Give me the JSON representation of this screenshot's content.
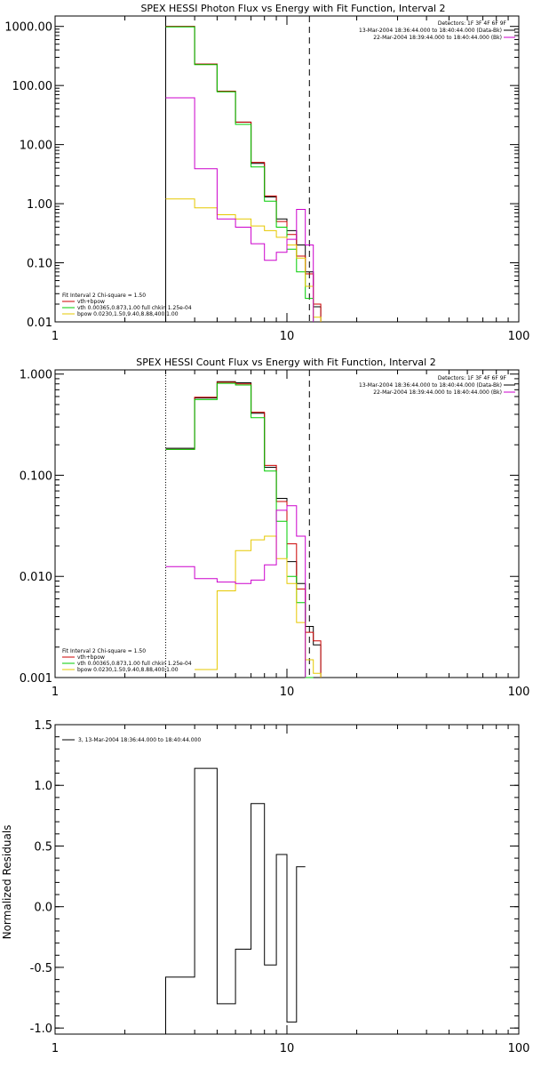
{
  "colors": {
    "total": "#000000",
    "fit": "#cc0000",
    "vth": "#00cc00",
    "bpow": "#e6c800",
    "bk": "#cc00cc",
    "background": "#ffffff"
  },
  "chart_data": [
    {
      "id": "photon",
      "type": "line",
      "title": "SPEX HESSI Photon Flux vs Energy with Fit Function, Interval 2",
      "xlabel": "",
      "ylabel": "",
      "xscale": "log",
      "yscale": "log",
      "xlim": [
        1,
        100
      ],
      "ylim": [
        0.01,
        1500
      ],
      "xticks": [
        1,
        10,
        100
      ],
      "xtick_labels": [
        "1",
        "10",
        "100"
      ],
      "yticks": [
        0.01,
        0.1,
        1,
        10,
        100,
        1000
      ],
      "ytick_labels": [
        "0.01",
        "0.10",
        "1.00",
        "10.00",
        "100.00",
        "1000.00"
      ],
      "vlines": [
        {
          "x": 3.0,
          "style": "solid"
        },
        {
          "x": 12.5,
          "style": "dashed"
        }
      ],
      "legend_right": {
        "header": "Detectors: 1F 3F 4F 6F 9F",
        "entries": [
          {
            "label": "13-Mar-2004 18:36:44.000 to 18:40:44.000 (Data-Bk)",
            "color": "#000000"
          },
          {
            "label": "22-Mar-2004 18:39:44.000 to 18:40:44.000 (Bk)",
            "color": "#cc00cc"
          }
        ]
      },
      "legend_left": {
        "header": "Fit Interval 2   Chi-square = 1.50",
        "entries": [
          {
            "label": "vth+bpow",
            "color": "#cc0000"
          },
          {
            "label": "vth 0.00365,0.873,1.00  full chkin 1.25e-04",
            "color": "#00cc00"
          },
          {
            "label": "bpow 0.0230,1.50,9.40,8.88,400,1.00",
            "color": "#e6c800"
          }
        ]
      },
      "bin_edges": [
        3.0,
        4.0,
        5.0,
        6.0,
        7.0,
        8.0,
        9.0,
        10.0,
        11.0,
        12.0,
        13.0,
        14.0
      ],
      "series": [
        {
          "key": "total",
          "color": "#000000",
          "values": [
            1000,
            230,
            80,
            24,
            4.8,
            1.3,
            0.55,
            0.35,
            0.2,
            0.07,
            0.018
          ]
        },
        {
          "key": "fit",
          "color": "#cc0000",
          "values": [
            1000,
            230,
            80,
            24,
            5.0,
            1.35,
            0.5,
            0.3,
            0.13,
            0.065,
            0.02
          ]
        },
        {
          "key": "vth",
          "color": "#00cc00",
          "values": [
            980,
            225,
            78,
            22,
            4.2,
            1.1,
            0.4,
            0.17,
            0.07,
            0.025
          ]
        },
        {
          "key": "bpow",
          "color": "#e6c800",
          "values": [
            1.2,
            0.85,
            0.65,
            0.55,
            0.42,
            0.35,
            0.27,
            0.2,
            0.12,
            0.04,
            0.012
          ]
        },
        {
          "key": "bk",
          "color": "#cc00cc",
          "values": [
            62,
            3.9,
            0.55,
            0.4,
            0.21,
            0.11,
            0.15,
            0.25,
            0.8,
            0.2
          ]
        }
      ]
    },
    {
      "id": "count",
      "type": "line",
      "title": "SPEX HESSI Count Flux vs Energy with Fit Function, Interval 2",
      "xlabel": "",
      "ylabel": "",
      "xscale": "log",
      "yscale": "log",
      "xlim": [
        1,
        100
      ],
      "ylim": [
        0.001,
        1.1
      ],
      "xticks": [
        1,
        10,
        100
      ],
      "xtick_labels": [
        "1",
        "10",
        "100"
      ],
      "yticks": [
        0.001,
        0.01,
        0.1,
        1
      ],
      "ytick_labels": [
        "0.001",
        "0.010",
        "0.100",
        "1.000"
      ],
      "vlines": [
        {
          "x": 3.0,
          "style": "dotted"
        },
        {
          "x": 12.5,
          "style": "dashed"
        }
      ],
      "legend_right": {
        "header": "Detectors: 1F 3F 4F 6F 9F",
        "entries": [
          {
            "label": "13-Mar-2004 18:36:44.000 to 18:40:44.000 (Data-Bk)",
            "color": "#000000"
          },
          {
            "label": "22-Mar-2004 18:39:44.000 to 18:40:44.000 (Bk)",
            "color": "#cc00cc"
          }
        ]
      },
      "legend_left": {
        "header": "Fit Interval 2   Chi-square = 1.50",
        "entries": [
          {
            "label": "vth+bpow",
            "color": "#cc0000"
          },
          {
            "label": "vth 0.00365,0.873,1.00  full chkin 1.25e-04",
            "color": "#00cc00"
          },
          {
            "label": "bpow 0.0230,1.50,9.40,8.88,400,1.00",
            "color": "#e6c800"
          }
        ]
      },
      "bin_edges": [
        3.0,
        4.0,
        5.0,
        6.0,
        7.0,
        8.0,
        9.0,
        10.0,
        11.0,
        12.0,
        13.0,
        14.0
      ],
      "series": [
        {
          "key": "total",
          "color": "#000000",
          "values": [
            0.185,
            0.58,
            0.84,
            0.82,
            0.41,
            0.12,
            0.059,
            0.014,
            0.0085,
            0.0032,
            0.0021
          ]
        },
        {
          "key": "fit",
          "color": "#cc0000",
          "values": [
            0.18,
            0.59,
            0.83,
            0.8,
            0.42,
            0.125,
            0.055,
            0.021,
            0.0075,
            0.0028,
            0.0023
          ]
        },
        {
          "key": "vth",
          "color": "#00cc00",
          "values": [
            0.18,
            0.56,
            0.81,
            0.78,
            0.37,
            0.11,
            0.035,
            0.01,
            0.0055,
            0.001
          ]
        },
        {
          "key": "bpow",
          "color": "#e6c800",
          "values": [
            null,
            0.0012,
            0.0072,
            0.018,
            0.023,
            0.025,
            0.015,
            0.0085,
            0.0035,
            0.0015,
            0.0011
          ]
        },
        {
          "key": "bk",
          "color": "#cc00cc",
          "values": [
            0.0125,
            0.0095,
            0.0088,
            0.0085,
            0.0092,
            0.013,
            0.045,
            0.05,
            0.025
          ]
        }
      ]
    },
    {
      "id": "resid",
      "type": "line",
      "title": "",
      "xlabel": "",
      "ylabel": "Normalized Residuals",
      "xscale": "log",
      "yscale": "linear",
      "xlim": [
        1,
        100
      ],
      "ylim": [
        -1.05,
        1.5
      ],
      "xticks": [
        1,
        10,
        100
      ],
      "xtick_labels": [
        "1",
        "10",
        "100"
      ],
      "yticks": [
        -1,
        -0.5,
        0,
        0.5,
        1,
        1.5
      ],
      "ytick_labels": [
        "-1.0",
        "-0.5",
        "0.0",
        "0.5",
        "1.0",
        "1.5"
      ],
      "legend_left": {
        "header": "",
        "entries": [
          {
            "label": "3, 13-Mar-2004 18:36:44.000 to 18:40:44.000",
            "color": "#000000"
          }
        ]
      },
      "bin_edges": [
        3.0,
        4.0,
        5.0,
        6.0,
        7.0,
        8.0,
        9.0,
        10.0,
        11.0,
        12.0
      ],
      "series": [
        {
          "key": "residuals",
          "color": "#000000",
          "values": [
            -0.58,
            1.14,
            -0.8,
            -0.35,
            0.85,
            -0.48,
            0.43,
            -0.95,
            0.33
          ]
        }
      ]
    }
  ]
}
